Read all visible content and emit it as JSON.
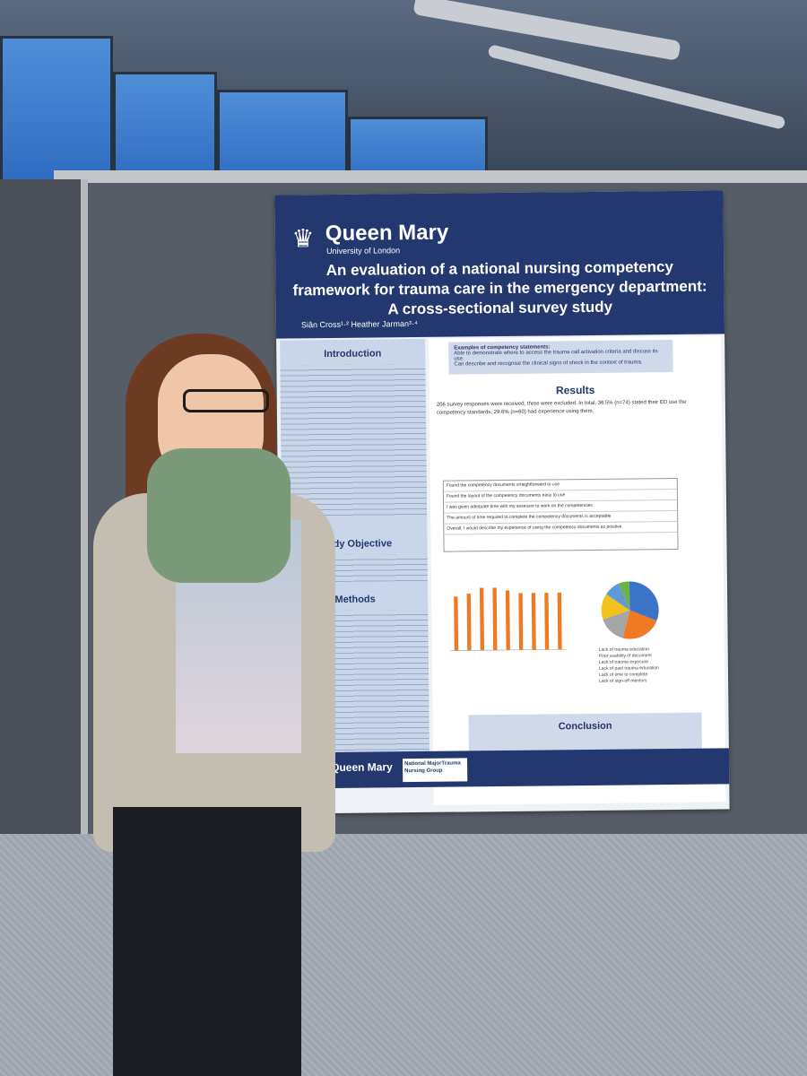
{
  "poster": {
    "logo": {
      "name": "Queen Mary",
      "sub": "University of London"
    },
    "title": "An evaluation of a national nursing competency framework for trauma care in the emergency department: A cross-sectional survey study",
    "authors": "Siân Cross¹·² Heather Jarman³·⁴",
    "sections": {
      "introduction": "Introduction",
      "study_objective": "Study Objective",
      "methods": "Methods",
      "results": "Results",
      "conclusion": "Conclusion"
    },
    "examples_title": "Examples of competency statements:",
    "examples": [
      "Able to demonstrate where to access the trauma call activation criteria and discuss its use.",
      "Can describe and recognise the clinical signs of shock in the context of trauma."
    ],
    "results_text": "206 survey responses were received, three were excluded. In total, 36.5% (n=74) stated their ED use the competency standards, 29.6% (n=60) had experience using them.",
    "table_rows": [
      "Found the competency documents straightforward to use",
      "Found the layout of the competency documents easy to use",
      "I was given adequate time with my assessor to work on the competencies",
      "The amount of time required to complete the competency documents is acceptable",
      "Overall, I would describe my experience of using the competency documents as positive"
    ],
    "pie_legend": [
      "Lack of trauma education",
      "Poor usability of document",
      "Lack of trauma exposure",
      "Lack of paid trauma education",
      "Lack of time to complete",
      "Lack of sign-off mentors"
    ],
    "footer_logo_1": "Queen Mary",
    "footer_logo_2": "National MajorTrauma Nursing Group"
  },
  "colors": {
    "poster_blue": "#23386f",
    "section_bg": "#c9d6ea",
    "bar_orange": "#ef7a22"
  },
  "chart_data": {
    "type": "bar",
    "categories": [
      "1",
      "2",
      "3",
      "4",
      "5",
      "6",
      "7",
      "8",
      "9"
    ],
    "values": [
      95,
      100,
      110,
      110,
      105,
      100,
      100,
      100,
      100
    ]
  }
}
